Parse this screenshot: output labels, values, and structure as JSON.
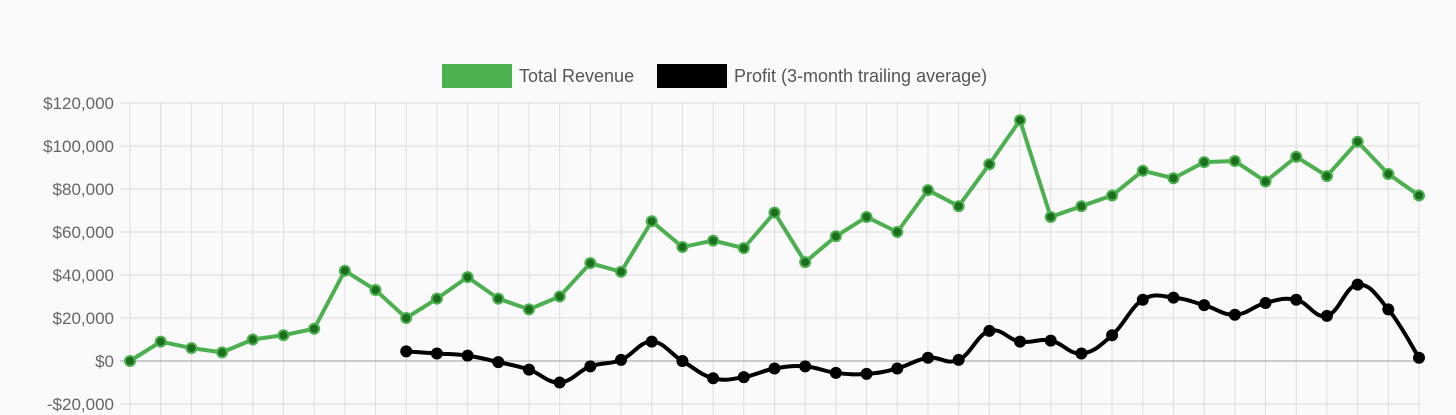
{
  "chart_data": {
    "type": "line",
    "title": "",
    "xlabel": "",
    "ylabel": "",
    "x_count": 43,
    "ylim": [
      -20000,
      120000
    ],
    "y_ticks": [
      {
        "value": 120000,
        "label": "$120,000"
      },
      {
        "value": 100000,
        "label": "$100,000"
      },
      {
        "value": 80000,
        "label": "$80,000"
      },
      {
        "value": 60000,
        "label": "$60,000"
      },
      {
        "value": 40000,
        "label": "$40,000"
      },
      {
        "value": 20000,
        "label": "$20,000"
      },
      {
        "value": 0,
        "label": "$0"
      },
      {
        "value": -20000,
        "label": "-$20,000"
      }
    ],
    "grid": true,
    "legend": "top-center",
    "series": [
      {
        "name": "Total Revenue",
        "color": "#4caf50",
        "point_color": "#1b6e1b",
        "curve": "straight",
        "start_index": 0,
        "values": [
          0,
          9000,
          6000,
          4000,
          10000,
          12000,
          15000,
          42000,
          33000,
          20000,
          29000,
          39000,
          29000,
          24000,
          30000,
          45500,
          41500,
          65000,
          53000,
          56000,
          52500,
          69000,
          46000,
          58000,
          67000,
          60000,
          79500,
          72000,
          91500,
          112000,
          67000,
          72000,
          77000,
          88500,
          85000,
          92500,
          93000,
          83500,
          95000,
          86000,
          102000,
          87000,
          77000
        ]
      },
      {
        "name": "Profit (3-month trailing average)",
        "color": "#000000",
        "point_color": "#000000",
        "curve": "smooth",
        "start_index": 9,
        "values": [
          4500,
          3500,
          2500,
          -500,
          -4000,
          -10000,
          -2500,
          500,
          9000,
          0,
          -8000,
          -7500,
          -3500,
          -2500,
          -5500,
          -6000,
          -3500,
          1500,
          500,
          14000,
          9000,
          9500,
          3500,
          12000,
          28500,
          29500,
          26000,
          21500,
          27000,
          28500,
          21000,
          35500,
          24000,
          1500
        ]
      }
    ]
  }
}
